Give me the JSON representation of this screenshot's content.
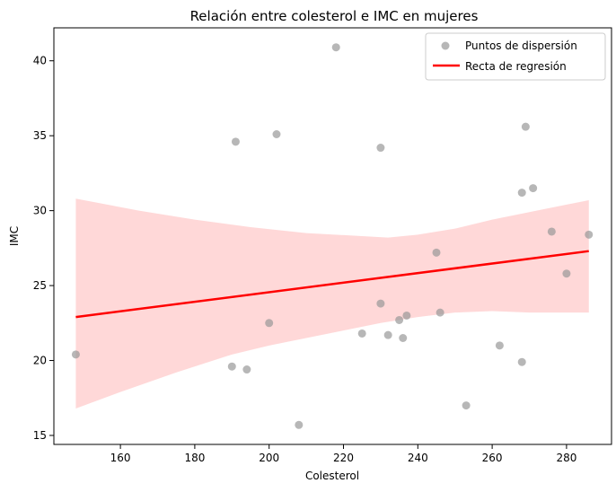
{
  "chart_data": {
    "type": "scatter",
    "title": "Relación entre colesterol e IMC en mujeres",
    "xlabel": "Colesterol",
    "ylabel": "IMC",
    "xlim": [
      142.1,
      292.1
    ],
    "ylim": [
      14.4,
      42.2
    ],
    "x_ticks": [
      160,
      180,
      200,
      220,
      240,
      260,
      280
    ],
    "y_ticks": [
      15,
      20,
      25,
      30,
      35,
      40
    ],
    "grid": false,
    "legend_position": "top-right",
    "series": [
      {
        "name": "Puntos de dispersión",
        "kind": "scatter",
        "color": "#999999",
        "points": [
          {
            "x": 148,
            "y": 20.4
          },
          {
            "x": 190,
            "y": 19.6
          },
          {
            "x": 191,
            "y": 34.6
          },
          {
            "x": 194,
            "y": 19.4
          },
          {
            "x": 200,
            "y": 22.5
          },
          {
            "x": 202,
            "y": 35.1
          },
          {
            "x": 208,
            "y": 15.7
          },
          {
            "x": 218,
            "y": 40.9
          },
          {
            "x": 225,
            "y": 21.8
          },
          {
            "x": 230,
            "y": 34.2
          },
          {
            "x": 230,
            "y": 23.8
          },
          {
            "x": 232,
            "y": 21.7
          },
          {
            "x": 235,
            "y": 22.7
          },
          {
            "x": 236,
            "y": 21.5
          },
          {
            "x": 237,
            "y": 23.0
          },
          {
            "x": 245,
            "y": 27.2
          },
          {
            "x": 246,
            "y": 23.2
          },
          {
            "x": 253,
            "y": 17.0
          },
          {
            "x": 262,
            "y": 21.0
          },
          {
            "x": 268,
            "y": 31.2
          },
          {
            "x": 268,
            "y": 19.9
          },
          {
            "x": 269,
            "y": 35.6
          },
          {
            "x": 271,
            "y": 31.5
          },
          {
            "x": 276,
            "y": 28.6
          },
          {
            "x": 280,
            "y": 25.8
          },
          {
            "x": 286,
            "y": 28.4
          }
        ]
      },
      {
        "name": "Recta de regresión",
        "kind": "line",
        "color": "#ff0000",
        "points": [
          {
            "x": 148,
            "y": 22.9
          },
          {
            "x": 286,
            "y": 27.3
          }
        ]
      }
    ],
    "confidence_band": {
      "color": "#ffd6d6",
      "upper": [
        {
          "x": 148,
          "y": 30.8
        },
        {
          "x": 165,
          "y": 30.0
        },
        {
          "x": 180,
          "y": 29.4
        },
        {
          "x": 195,
          "y": 28.9
        },
        {
          "x": 210,
          "y": 28.5
        },
        {
          "x": 225,
          "y": 28.3
        },
        {
          "x": 232,
          "y": 28.2
        },
        {
          "x": 240,
          "y": 28.4
        },
        {
          "x": 250,
          "y": 28.8
        },
        {
          "x": 260,
          "y": 29.4
        },
        {
          "x": 270,
          "y": 29.9
        },
        {
          "x": 286,
          "y": 30.7
        }
      ],
      "lower": [
        {
          "x": 148,
          "y": 16.8
        },
        {
          "x": 160,
          "y": 17.9
        },
        {
          "x": 175,
          "y": 19.2
        },
        {
          "x": 190,
          "y": 20.4
        },
        {
          "x": 200,
          "y": 21.0
        },
        {
          "x": 210,
          "y": 21.5
        },
        {
          "x": 220,
          "y": 22.0
        },
        {
          "x": 230,
          "y": 22.5
        },
        {
          "x": 240,
          "y": 22.9
        },
        {
          "x": 250,
          "y": 23.2
        },
        {
          "x": 260,
          "y": 23.3
        },
        {
          "x": 270,
          "y": 23.2
        },
        {
          "x": 286,
          "y": 23.2
        }
      ]
    }
  }
}
